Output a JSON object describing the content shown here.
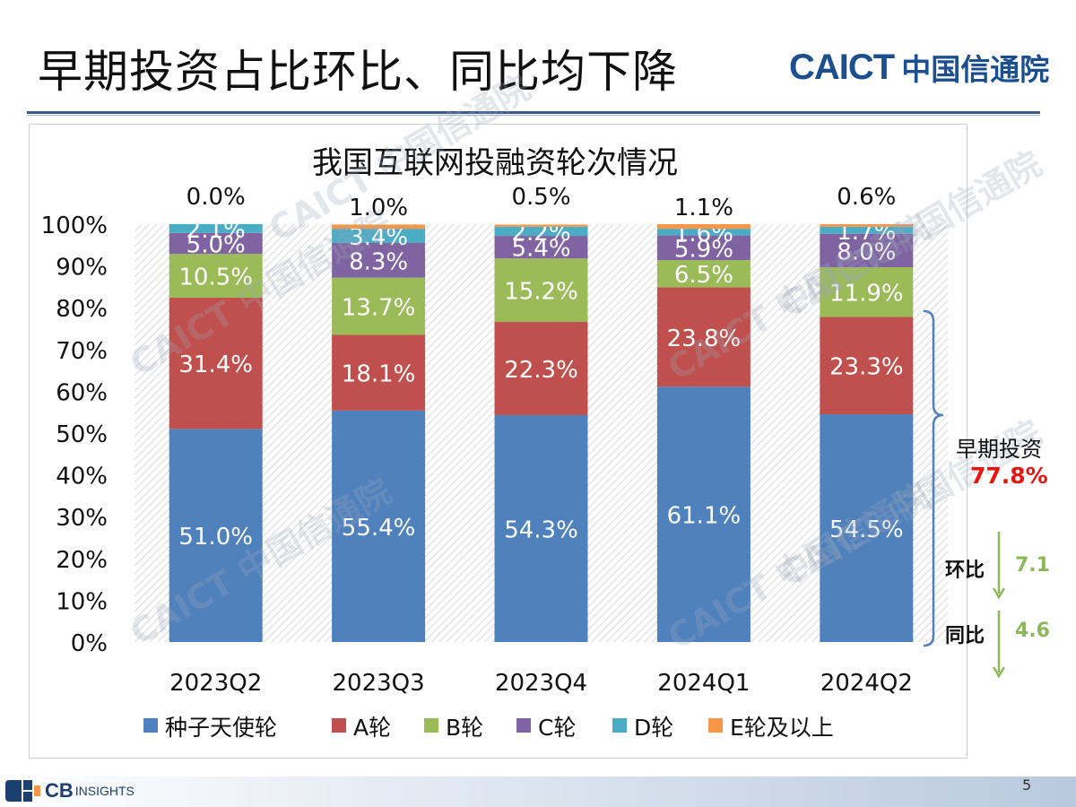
{
  "slide": {
    "title": "早期投资占比环比、同比均下降",
    "logo_en": "CAICT",
    "logo_cn": "中国信通院",
    "watermark": "CAICT 中国信通院",
    "footer_brand": "CB",
    "footer_brand_suffix": "INSIGHTS",
    "page_number": "5"
  },
  "annotations": {
    "early_label": "早期投资",
    "early_value": "77.8%",
    "qoq_label": "环比",
    "qoq_value": "7.1",
    "yoy_label": "同比",
    "yoy_value": "4.6"
  },
  "colors": {
    "seed": "#4f81bd",
    "a": "#c0504d",
    "b": "#9bbb59",
    "c": "#8064a2",
    "d": "#4bacc6",
    "e": "#f79646",
    "accent_red": "#e8140e",
    "accent_green": "#8db85a",
    "brand_blue": "#1b4f8e"
  },
  "chart_data": {
    "type": "bar",
    "stacked": true,
    "title": "我国互联网投融资轮次情况",
    "categories": [
      "2023Q2",
      "2023Q3",
      "2023Q4",
      "2024Q1",
      "2024Q2"
    ],
    "series": [
      {
        "name": "种子天使轮",
        "values": [
          51.0,
          55.4,
          54.3,
          61.1,
          54.5
        ],
        "labels": [
          "51.0%",
          "55.4%",
          "54.3%",
          "61.1%",
          "54.5%"
        ]
      },
      {
        "name": "A轮",
        "values": [
          31.4,
          18.1,
          22.3,
          23.8,
          23.3
        ],
        "labels": [
          "31.4%",
          "18.1%",
          "22.3%",
          "23.8%",
          "23.3%"
        ]
      },
      {
        "name": "B轮",
        "values": [
          10.5,
          13.7,
          15.2,
          6.5,
          11.9
        ],
        "labels": [
          "10.5%",
          "13.7%",
          "15.2%",
          "6.5%",
          "11.9%"
        ]
      },
      {
        "name": "C轮",
        "values": [
          5.0,
          8.3,
          5.4,
          5.9,
          8.0
        ],
        "labels": [
          "5.0%",
          "8.3%",
          "5.4%",
          "5.9%",
          "8.0%"
        ]
      },
      {
        "name": "D轮",
        "values": [
          2.1,
          3.4,
          2.2,
          1.6,
          1.7
        ],
        "labels": [
          "2.1%",
          "3.4%",
          "2.2%",
          "1.6%",
          "1.7%"
        ]
      },
      {
        "name": "E轮及以上",
        "values": [
          0.0,
          1.0,
          0.5,
          1.1,
          0.6
        ],
        "labels": [
          "0.0%",
          "1.0%",
          "0.5%",
          "1.1%",
          "0.6%"
        ]
      }
    ],
    "ylim": [
      0,
      100
    ],
    "yticks": [
      "0%",
      "10%",
      "20%",
      "30%",
      "40%",
      "50%",
      "60%",
      "70%",
      "80%",
      "90%",
      "100%"
    ],
    "legend_position": "bottom"
  }
}
